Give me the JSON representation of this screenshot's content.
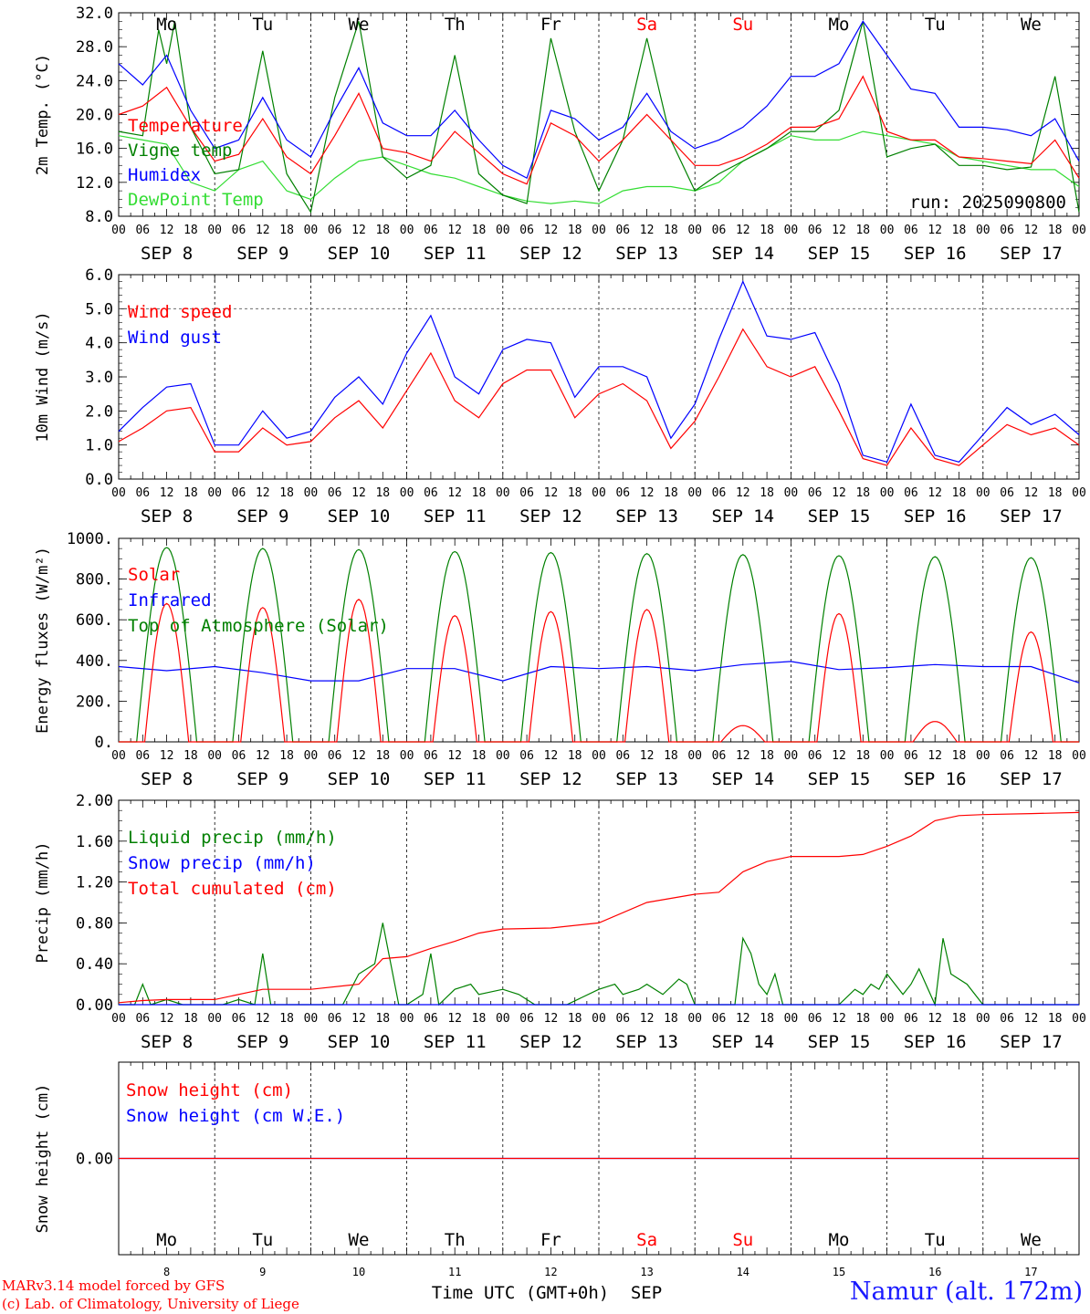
{
  "chart_data": [
    {
      "type": "line",
      "ylabel": "2m Temp. (°C)",
      "ylim": [
        8.0,
        32.0
      ],
      "yticks": [
        "8.0",
        "12.0",
        "16.0",
        "20.0",
        "24.0",
        "28.0",
        "32.0"
      ],
      "legend_placement": "top-left",
      "annotation": "run: 2025090800",
      "series": [
        {
          "name": "Temperature",
          "color": "#ff0000",
          "x": [
            0,
            6,
            12,
            18,
            24,
            30,
            36,
            42,
            48,
            54,
            60,
            66,
            72,
            78,
            84,
            90,
            96,
            102,
            108,
            114,
            120,
            126,
            132,
            138,
            144,
            150,
            156,
            162,
            168,
            174,
            180,
            186,
            192,
            198,
            204,
            210,
            216,
            222,
            228,
            234,
            240
          ],
          "values": [
            20.0,
            21.0,
            23.2,
            18.5,
            14.5,
            15.3,
            19.5,
            15.0,
            13.0,
            17.5,
            22.5,
            16.0,
            15.5,
            14.5,
            18.0,
            15.5,
            13.0,
            11.8,
            19.0,
            17.5,
            14.5,
            17.0,
            20.0,
            17.0,
            14.0,
            14.0,
            15.0,
            16.5,
            18.5,
            18.5,
            19.5,
            24.5,
            18.0,
            17.0,
            17.0,
            15.0,
            14.8,
            14.5,
            14.2,
            17.0,
            12.5
          ]
        },
        {
          "name": "Vigne temp",
          "color": "#008000",
          "x": [
            0,
            6,
            10,
            12,
            14,
            18,
            24,
            30,
            36,
            42,
            48,
            54,
            60,
            66,
            72,
            78,
            84,
            90,
            96,
            102,
            108,
            114,
            120,
            126,
            132,
            138,
            144,
            150,
            156,
            162,
            168,
            174,
            180,
            186,
            192,
            198,
            204,
            210,
            216,
            222,
            228,
            234,
            240
          ],
          "values": [
            18.0,
            17.5,
            30.0,
            26.0,
            31.0,
            18.5,
            13.0,
            13.5,
            27.5,
            13.0,
            8.5,
            22.0,
            31.0,
            15.0,
            12.5,
            14.0,
            27.0,
            13.0,
            10.5,
            9.5,
            29.0,
            18.0,
            11.0,
            17.0,
            29.0,
            17.0,
            11.0,
            13.0,
            14.5,
            16.0,
            18.0,
            18.0,
            20.5,
            31.0,
            15.0,
            16.0,
            16.5,
            14.0,
            14.0,
            13.5,
            13.8,
            24.5,
            8.5
          ]
        },
        {
          "name": "Humidex",
          "color": "#0000ff",
          "x": [
            0,
            6,
            12,
            18,
            24,
            30,
            36,
            42,
            48,
            54,
            60,
            66,
            72,
            78,
            84,
            90,
            96,
            102,
            108,
            114,
            120,
            126,
            132,
            138,
            144,
            150,
            156,
            162,
            168,
            174,
            180,
            186,
            192,
            198,
            204,
            210,
            216,
            222,
            228,
            234,
            240
          ],
          "values": [
            26.0,
            23.5,
            27.0,
            20.5,
            16.0,
            17.0,
            22.0,
            17.0,
            15.0,
            20.5,
            25.5,
            19.0,
            17.5,
            17.5,
            20.5,
            17.0,
            14.0,
            12.5,
            20.5,
            19.5,
            17.0,
            18.5,
            22.5,
            18.0,
            16.0,
            17.0,
            18.5,
            21.0,
            24.5,
            24.5,
            26.0,
            31.0,
            27.0,
            23.0,
            22.5,
            18.5,
            18.5,
            18.2,
            17.5,
            19.5,
            14.5
          ]
        },
        {
          "name": "DewPoint Temp",
          "color": "#33dd33",
          "x": [
            0,
            6,
            12,
            18,
            24,
            30,
            36,
            42,
            48,
            54,
            60,
            66,
            72,
            78,
            84,
            90,
            96,
            102,
            108,
            114,
            120,
            126,
            132,
            138,
            144,
            150,
            156,
            162,
            168,
            174,
            180,
            186,
            192,
            198,
            204,
            210,
            216,
            222,
            228,
            234,
            240
          ],
          "values": [
            17.5,
            17.0,
            16.5,
            12.0,
            11.0,
            13.5,
            14.5,
            11.0,
            10.0,
            12.5,
            14.5,
            15.0,
            14.0,
            13.0,
            12.5,
            11.5,
            10.5,
            9.8,
            9.5,
            9.8,
            9.5,
            11.0,
            11.5,
            11.5,
            11.0,
            12.0,
            14.5,
            16.0,
            17.5,
            17.0,
            17.0,
            18.0,
            17.5,
            17.0,
            16.5,
            15.0,
            14.5,
            14.0,
            13.5,
            13.5,
            11.5
          ]
        }
      ]
    },
    {
      "type": "line",
      "ylabel": "10m Wind (m/s)",
      "ylim": [
        0.0,
        6.0
      ],
      "yticks": [
        "0.0",
        "1.0",
        "2.0",
        "3.0",
        "4.0",
        "5.0",
        "6.0"
      ],
      "reference_line": 5.0,
      "legend_placement": "top-left",
      "series": [
        {
          "name": "Wind speed",
          "color": "#ff0000",
          "x": [
            0,
            6,
            12,
            18,
            24,
            30,
            36,
            42,
            48,
            54,
            60,
            66,
            72,
            78,
            84,
            90,
            96,
            102,
            108,
            114,
            120,
            126,
            132,
            138,
            144,
            150,
            156,
            162,
            168,
            174,
            180,
            186,
            192,
            198,
            204,
            210,
            216,
            222,
            228,
            234,
            240
          ],
          "values": [
            1.1,
            1.5,
            2.0,
            2.1,
            0.8,
            0.8,
            1.5,
            1.0,
            1.1,
            1.8,
            2.3,
            1.5,
            2.6,
            3.7,
            2.3,
            1.8,
            2.8,
            3.2,
            3.2,
            1.8,
            2.5,
            2.8,
            2.3,
            0.9,
            1.7,
            3.0,
            4.4,
            3.3,
            3.0,
            3.3,
            2.0,
            0.6,
            0.4,
            1.5,
            0.6,
            0.4,
            1.0,
            1.6,
            1.3,
            1.5,
            1.0
          ]
        },
        {
          "name": "Wind gust",
          "color": "#0000ff",
          "x": [
            0,
            6,
            12,
            18,
            24,
            30,
            36,
            42,
            48,
            54,
            60,
            66,
            72,
            78,
            84,
            90,
            96,
            102,
            108,
            114,
            120,
            126,
            132,
            138,
            144,
            150,
            156,
            162,
            168,
            174,
            180,
            186,
            192,
            198,
            204,
            210,
            216,
            222,
            228,
            234,
            240
          ],
          "values": [
            1.4,
            2.1,
            2.7,
            2.8,
            1.0,
            1.0,
            2.0,
            1.2,
            1.4,
            2.4,
            3.0,
            2.2,
            3.7,
            4.8,
            3.0,
            2.5,
            3.8,
            4.1,
            4.0,
            2.4,
            3.3,
            3.3,
            3.0,
            1.2,
            2.2,
            4.1,
            5.8,
            4.2,
            4.1,
            4.3,
            2.8,
            0.7,
            0.5,
            2.2,
            0.7,
            0.5,
            1.3,
            2.1,
            1.6,
            1.9,
            1.3
          ]
        }
      ]
    },
    {
      "type": "line",
      "ylabel": "Energy fluxes (W/m²)",
      "ylim": [
        0,
        1000
      ],
      "yticks": [
        "0.",
        "200.",
        "400.",
        "600.",
        "800.",
        "1000."
      ],
      "legend_placement": "top-left",
      "series": [
        {
          "name": "Solar",
          "color": "#ff0000",
          "daily_peaks": [
            680,
            660,
            700,
            620,
            640,
            650,
            80,
            630,
            100,
            540
          ]
        },
        {
          "name": "Infrared",
          "color": "#0000ff",
          "x": [
            0,
            12,
            24,
            36,
            48,
            60,
            72,
            84,
            96,
            108,
            120,
            132,
            144,
            156,
            168,
            180,
            192,
            204,
            216,
            228,
            240
          ],
          "values": [
            370,
            350,
            370,
            340,
            300,
            300,
            360,
            360,
            300,
            370,
            360,
            370,
            350,
            380,
            395,
            355,
            365,
            380,
            370,
            370,
            290
          ]
        },
        {
          "name": "Top of Atmosphere (Solar)",
          "color": "#008000",
          "daily_peaks": [
            955,
            950,
            945,
            935,
            930,
            925,
            920,
            915,
            910,
            905
          ]
        }
      ]
    },
    {
      "type": "line",
      "ylabel": "Precip (mm/h)",
      "ylim": [
        0.0,
        2.0
      ],
      "yticks": [
        "0.00",
        "0.40",
        "0.80",
        "1.20",
        "1.60",
        "2.00"
      ],
      "legend_placement": "top-left",
      "series": [
        {
          "name": "Liquid precip (mm/h)",
          "color": "#008000",
          "x": [
            0,
            4,
            6,
            8,
            12,
            16,
            20,
            24,
            26,
            30,
            34,
            36,
            38,
            42,
            48,
            56,
            60,
            64,
            66,
            70,
            72,
            76,
            78,
            80,
            84,
            88,
            90,
            96,
            100,
            104,
            108,
            112,
            120,
            124,
            126,
            130,
            132,
            136,
            140,
            142,
            144,
            150,
            154,
            156,
            158,
            160,
            162,
            164,
            166,
            168,
            172,
            176,
            180,
            184,
            186,
            188,
            190,
            192,
            196,
            198,
            200,
            204,
            206,
            208,
            212,
            216,
            240
          ],
          "values": [
            0,
            0,
            0.2,
            0,
            0.05,
            0,
            0,
            0,
            0,
            0.05,
            0,
            0.5,
            0,
            0,
            0,
            0,
            0.3,
            0.4,
            0.8,
            0,
            0,
            0.1,
            0.5,
            0,
            0.15,
            0.2,
            0.1,
            0.15,
            0.1,
            0,
            0,
            0,
            0.15,
            0.2,
            0.1,
            0.15,
            0.2,
            0.1,
            0.25,
            0.2,
            0,
            0,
            0,
            0.65,
            0.5,
            0.2,
            0.1,
            0.3,
            0,
            0,
            0,
            0,
            0,
            0.15,
            0.1,
            0.2,
            0.15,
            0.3,
            0.1,
            0.2,
            0.35,
            0,
            0.65,
            0.3,
            0.2,
            0,
            0
          ]
        },
        {
          "name": "Snow precip (mm/h)",
          "color": "#0000ff",
          "x": [
            0,
            240
          ],
          "values": [
            0,
            0
          ]
        },
        {
          "name": "Total cumulated (cm)",
          "color": "#ff0000",
          "x": [
            0,
            6,
            12,
            24,
            36,
            42,
            48,
            60,
            66,
            72,
            78,
            84,
            90,
            96,
            108,
            120,
            132,
            144,
            150,
            156,
            162,
            168,
            180,
            186,
            192,
            198,
            204,
            210,
            216,
            228,
            240
          ],
          "values": [
            0.02,
            0.04,
            0.05,
            0.05,
            0.15,
            0.15,
            0.15,
            0.2,
            0.45,
            0.47,
            0.55,
            0.62,
            0.7,
            0.74,
            0.75,
            0.8,
            1.0,
            1.08,
            1.1,
            1.3,
            1.4,
            1.45,
            1.45,
            1.47,
            1.55,
            1.65,
            1.8,
            1.85,
            1.86,
            1.87,
            1.88
          ]
        }
      ]
    },
    {
      "type": "line",
      "ylabel": "Snow height (cm)",
      "ytick": "0.00",
      "legend_placement": "top-left",
      "series": [
        {
          "name": "Snow height (cm)",
          "color": "#ff0000",
          "x": [
            0,
            240
          ],
          "values": [
            0,
            0
          ]
        },
        {
          "name": "Snow height (cm W.E.)",
          "color": "#0000ff",
          "x": [
            0,
            240
          ],
          "values": [
            0,
            0
          ]
        }
      ]
    }
  ],
  "x_axis": {
    "hour_ticks": [
      "00",
      "06",
      "12",
      "18"
    ],
    "final_hour_tick": "00",
    "day_labels": [
      "SEP  8",
      "SEP  9",
      "SEP 10",
      "SEP 11",
      "SEP 12",
      "SEP 13",
      "SEP 14",
      "SEP 15",
      "SEP 16",
      "SEP 17"
    ],
    "weekdays": [
      "Mo",
      "Tu",
      "We",
      "Th",
      "Fr",
      "Sa",
      "Su",
      "Mo",
      "Tu",
      "We"
    ],
    "weekday_colors": [
      "#000000",
      "#000000",
      "#000000",
      "#000000",
      "#000000",
      "#ff0000",
      "#ff0000",
      "#000000",
      "#000000",
      "#000000"
    ],
    "day_numbers": [
      "8",
      "9",
      "10",
      "11",
      "12",
      "13",
      "14",
      "15",
      "16",
      "17"
    ],
    "xlabel": "Time UTC (GMT+0h)",
    "month": "SEP"
  },
  "footer": {
    "model": "MARv3.14 model forced by GFS",
    "lab": "(c) Lab. of Climatology, University of Liege",
    "station": "Namur (alt. 172m)"
  }
}
